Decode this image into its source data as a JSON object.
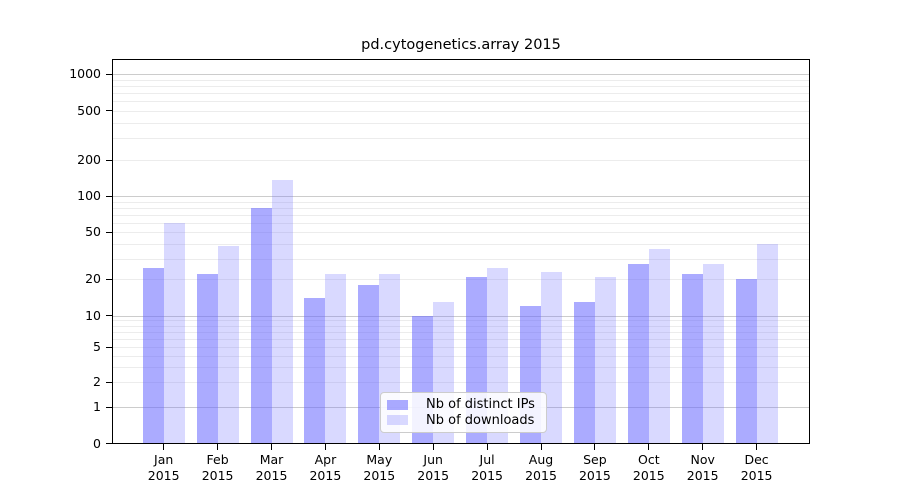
{
  "chart_data": {
    "type": "bar",
    "title": "pd.cytogenetics.array 2015",
    "categories": [
      "Jan",
      "Feb",
      "Mar",
      "Apr",
      "May",
      "Jun",
      "Jul",
      "Aug",
      "Sep",
      "Oct",
      "Nov",
      "Dec"
    ],
    "year_label": "2015",
    "series": [
      {
        "name": "Nb of distinct IPs",
        "color": "rgba(102,102,255,0.55)",
        "values": [
          25,
          22,
          80,
          14,
          18,
          10,
          21,
          12,
          13,
          27,
          22,
          20
        ]
      },
      {
        "name": "Nb of downloads",
        "color": "rgba(102,102,255,0.25)",
        "values": [
          60,
          38,
          135,
          22,
          22,
          13,
          25,
          23,
          21,
          36,
          27,
          40
        ]
      }
    ],
    "yscale": "log-like (0,1,2,5,10,20,50,100,200,500,1000)",
    "y_ticks": [
      0,
      1,
      2,
      5,
      10,
      20,
      50,
      100,
      200,
      500,
      1000
    ],
    "ylim": [
      0,
      1300
    ],
    "xlabel": "",
    "ylabel": "",
    "grid": true,
    "legend_position": "inside-bottom-center",
    "colors": {
      "grid_major": "#cccccc",
      "grid_minor": "#ececec",
      "axis": "#000000",
      "legend_border": "#cccccc"
    }
  }
}
